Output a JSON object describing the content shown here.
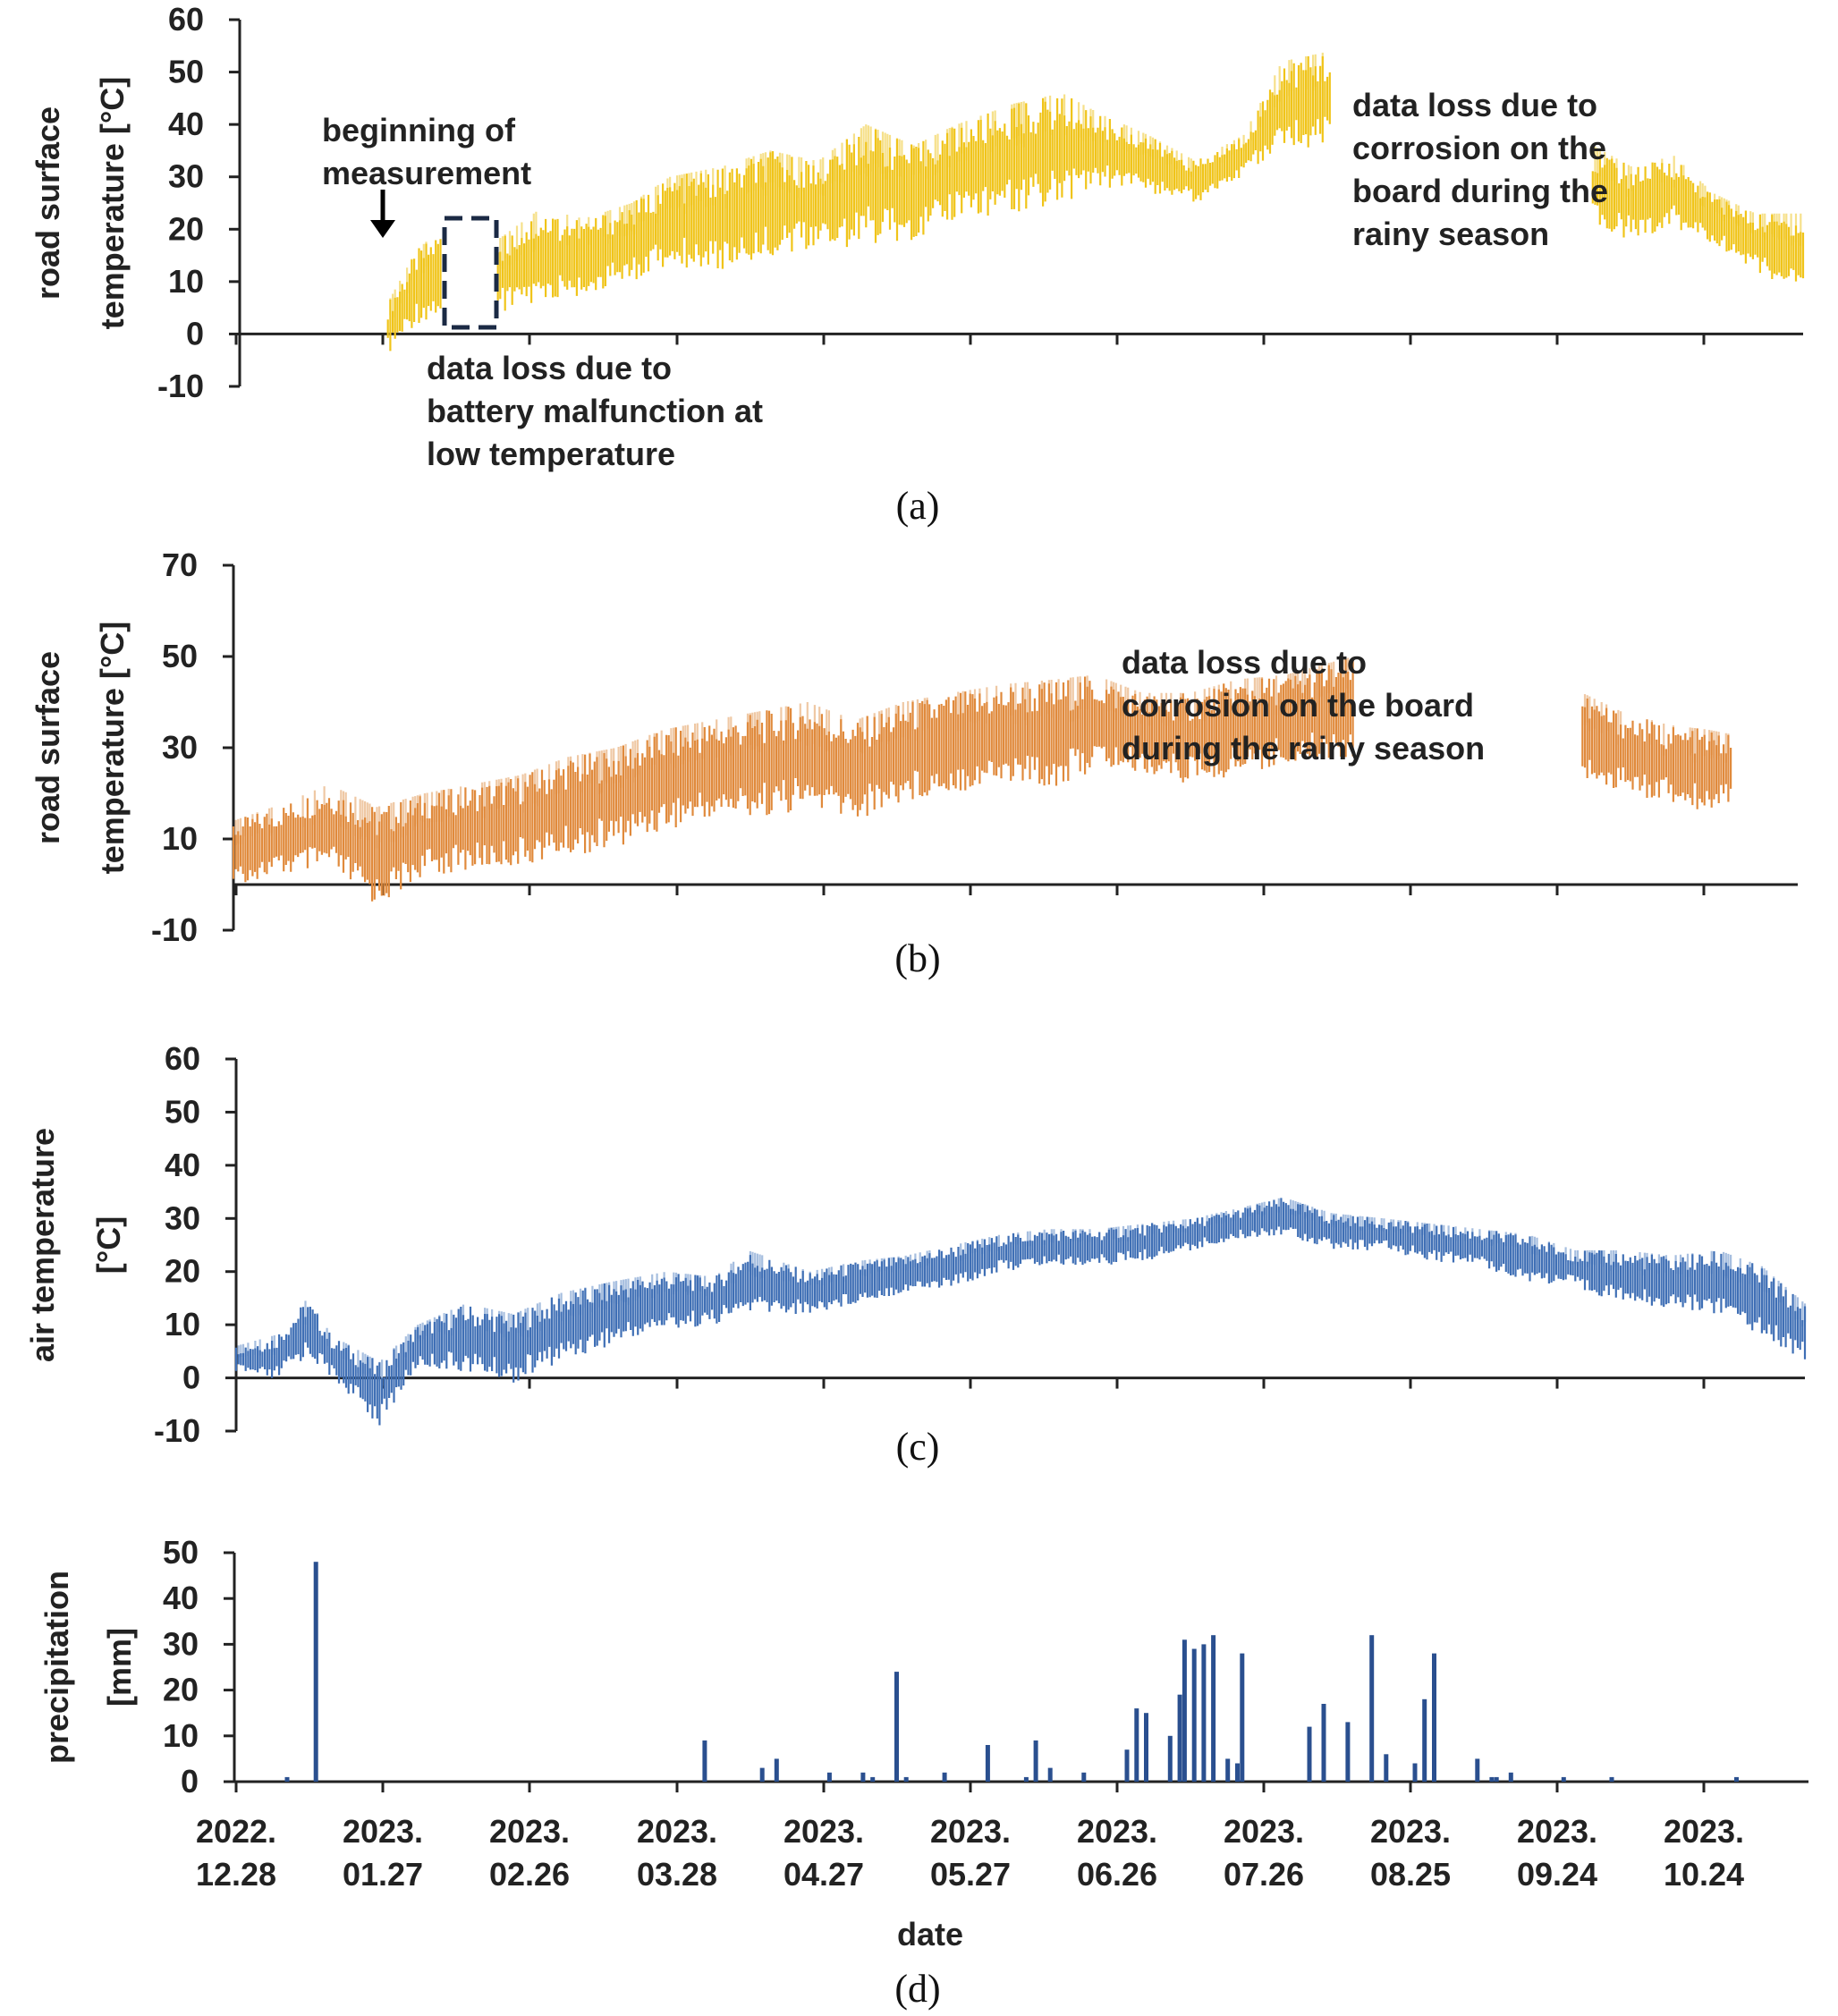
{
  "figure": {
    "x_tick_labels": [
      {
        "year": "2022.",
        "day": "12.28"
      },
      {
        "year": "2023.",
        "day": "01.27"
      },
      {
        "year": "2023.",
        "day": "02.26"
      },
      {
        "year": "2023.",
        "day": "03.28"
      },
      {
        "year": "2023.",
        "day": "04.27"
      },
      {
        "year": "2023.",
        "day": "05.27"
      },
      {
        "year": "2023.",
        "day": "06.26"
      },
      {
        "year": "2023.",
        "day": "07.26"
      },
      {
        "year": "2023.",
        "day": "08.25"
      },
      {
        "year": "2023.",
        "day": "09.24"
      },
      {
        "year": "2023.",
        "day": "10.24"
      }
    ],
    "x_axis_label": "date"
  },
  "chart_data": [
    {
      "type": "line",
      "panel_caption": "(a)",
      "ylabel_lines": [
        "road  surface",
        "temperature  [°C]"
      ],
      "yticks": [
        -10,
        0,
        10,
        20,
        30,
        40,
        50,
        60
      ],
      "ylim": [
        -10,
        60
      ],
      "xlim": [
        "2022-12-28",
        "2023-11-20"
      ],
      "color": "#f0c419",
      "color_light": "#f6e08a",
      "segments": [
        {
          "start": "2023-01-28",
          "end": "2023-02-08",
          "points": [
            [
              "2023-01-28",
              -4,
              6
            ],
            [
              "2023-02-03",
              2,
              16
            ],
            [
              "2023-02-08",
              3,
              20
            ]
          ]
        },
        {
          "start": "2023-02-20",
          "end": "2023-08-13",
          "points": [
            [
              "2023-02-20",
              4,
              18
            ],
            [
              "2023-03-01",
              5,
              24
            ],
            [
              "2023-03-10",
              7,
              22
            ],
            [
              "2023-03-20",
              10,
              25
            ],
            [
              "2023-03-28",
              13,
              30
            ],
            [
              "2023-04-08",
              12,
              32
            ],
            [
              "2023-04-18",
              15,
              35
            ],
            [
              "2023-04-28",
              16,
              33
            ],
            [
              "2023-05-08",
              17,
              40
            ],
            [
              "2023-05-18",
              18,
              36
            ],
            [
              "2023-05-27",
              22,
              40
            ],
            [
              "2023-06-08",
              23,
              44
            ],
            [
              "2023-06-18",
              25,
              46
            ],
            [
              "2023-06-26",
              28,
              42
            ],
            [
              "2023-07-06",
              27,
              38
            ],
            [
              "2023-07-16",
              25,
              33
            ],
            [
              "2023-07-26",
              30,
              38
            ],
            [
              "2023-08-03",
              35,
              52
            ],
            [
              "2023-08-13",
              36,
              54
            ]
          ]
        },
        {
          "start": "2023-10-07",
          "end": "2023-11-20",
          "points": [
            [
              "2023-10-07",
              20,
              36
            ],
            [
              "2023-10-15",
              18,
              32
            ],
            [
              "2023-10-24",
              20,
              34
            ],
            [
              "2023-11-01",
              17,
              27
            ],
            [
              "2023-11-10",
              12,
              23
            ],
            [
              "2023-11-20",
              7,
              23
            ]
          ]
        }
      ],
      "annotations": [
        {
          "lines": [
            "beginning of",
            "measurement"
          ]
        },
        {
          "lines": [
            "data loss due to",
            "battery malfunction at",
            "low temperature"
          ]
        },
        {
          "lines": [
            "data loss due to",
            "corrosion on the",
            "board during the",
            "rainy season"
          ]
        }
      ]
    },
    {
      "type": "line",
      "panel_caption": "(b)",
      "ylabel_lines": [
        "road  surface",
        "temperature  [°C]"
      ],
      "yticks": [
        -10,
        10,
        30,
        50,
        70
      ],
      "ylim": [
        -10,
        70
      ],
      "xlim": [
        "2022-12-28",
        "2023-11-20"
      ],
      "color": "#e08a3c",
      "color_light": "#efc8a4",
      "segments": [
        {
          "start": "2022-12-28",
          "end": "2023-08-19",
          "points": [
            [
              "2022-12-28",
              0,
              14
            ],
            [
              "2023-01-08",
              2,
              18
            ],
            [
              "2023-01-17",
              3,
              22
            ],
            [
              "2023-01-27",
              -5,
              17
            ],
            [
              "2023-02-06",
              2,
              20
            ],
            [
              "2023-02-16",
              3,
              22
            ],
            [
              "2023-02-26",
              4,
              24
            ],
            [
              "2023-03-08",
              6,
              28
            ],
            [
              "2023-03-18",
              8,
              30
            ],
            [
              "2023-03-28",
              12,
              34
            ],
            [
              "2023-04-07",
              14,
              36
            ],
            [
              "2023-04-17",
              15,
              38
            ],
            [
              "2023-04-27",
              16,
              40
            ],
            [
              "2023-05-07",
              14,
              36
            ],
            [
              "2023-05-17",
              18,
              40
            ],
            [
              "2023-05-27",
              20,
              42
            ],
            [
              "2023-06-08",
              22,
              44
            ],
            [
              "2023-06-18",
              21,
              45
            ],
            [
              "2023-06-26",
              25,
              46
            ],
            [
              "2023-07-06",
              24,
              42
            ],
            [
              "2023-07-16",
              22,
              42
            ],
            [
              "2023-07-26",
              24,
              45
            ],
            [
              "2023-08-05",
              26,
              46
            ],
            [
              "2023-08-19",
              28,
              50
            ]
          ]
        },
        {
          "start": "2023-10-06",
          "end": "2023-11-06",
          "points": [
            [
              "2023-10-06",
              23,
              42
            ],
            [
              "2023-10-14",
              20,
              38
            ],
            [
              "2023-10-24",
              18,
              35
            ],
            [
              "2023-11-01",
              16,
              34
            ],
            [
              "2023-11-06",
              18,
              33
            ]
          ]
        }
      ],
      "annotations": [
        {
          "lines": [
            "data loss due to",
            "corrosion on the board",
            "during the rainy season"
          ]
        }
      ]
    },
    {
      "type": "line",
      "panel_caption": "(c)",
      "ylabel_lines": [
        "air temperature",
        "[°C]"
      ],
      "yticks": [
        -10,
        0,
        10,
        20,
        30,
        40,
        50,
        60
      ],
      "ylim": [
        -10,
        60
      ],
      "xlim": [
        "2022-12-28",
        "2023-11-21"
      ],
      "color": "#3f6fb5",
      "color_light": "#a6bedf",
      "segments": [
        {
          "start": "2022-12-28",
          "end": "2023-11-21",
          "points": [
            [
              "2022-12-28",
              1,
              6
            ],
            [
              "2023-01-05",
              -1,
              8
            ],
            [
              "2023-01-12",
              4,
              15
            ],
            [
              "2023-01-17",
              0,
              8
            ],
            [
              "2023-01-27",
              -9,
              3
            ],
            [
              "2023-02-04",
              2,
              10
            ],
            [
              "2023-02-14",
              1,
              14
            ],
            [
              "2023-02-24",
              -1,
              12
            ],
            [
              "2023-03-06",
              3,
              16
            ],
            [
              "2023-03-16",
              6,
              18
            ],
            [
              "2023-03-28",
              9,
              20
            ],
            [
              "2023-04-07",
              10,
              19
            ],
            [
              "2023-04-14",
              12,
              24
            ],
            [
              "2023-04-27",
              12,
              20
            ],
            [
              "2023-05-07",
              14,
              22
            ],
            [
              "2023-05-17",
              16,
              23
            ],
            [
              "2023-05-27",
              17,
              25
            ],
            [
              "2023-06-06",
              20,
              27
            ],
            [
              "2023-06-16",
              21,
              28
            ],
            [
              "2023-06-26",
              21,
              28
            ],
            [
              "2023-07-06",
              22,
              29
            ],
            [
              "2023-07-16",
              24,
              30
            ],
            [
              "2023-07-26",
              26,
              32
            ],
            [
              "2023-08-04",
              27,
              34
            ],
            [
              "2023-08-14",
              24,
              31
            ],
            [
              "2023-08-25",
              24,
              30
            ],
            [
              "2023-09-04",
              22,
              29
            ],
            [
              "2023-09-14",
              21,
              28
            ],
            [
              "2023-09-24",
              18,
              27
            ],
            [
              "2023-10-04",
              17,
              24
            ],
            [
              "2023-10-14",
              14,
              24
            ],
            [
              "2023-10-24",
              13,
              23
            ],
            [
              "2023-11-03",
              12,
              24
            ],
            [
              "2023-11-12",
              8,
              21
            ],
            [
              "2023-11-21",
              3,
              14
            ]
          ]
        }
      ]
    },
    {
      "type": "bar",
      "panel_caption": "(d)",
      "ylabel_lines": [
        "precipitation",
        "[mm]"
      ],
      "yticks": [
        0,
        10,
        20,
        30,
        40,
        50
      ],
      "ylim": [
        0,
        50
      ],
      "xlim": [
        "2022-12-28",
        "2023-11-21"
      ],
      "color": "#2a4f8f",
      "x": [
        "2023-01-08",
        "2023-01-14",
        "2023-04-05",
        "2023-04-17",
        "2023-04-20",
        "2023-05-01",
        "2023-05-08",
        "2023-05-10",
        "2023-05-15",
        "2023-05-17",
        "2023-05-25",
        "2023-06-03",
        "2023-06-11",
        "2023-06-13",
        "2023-06-16",
        "2023-06-23",
        "2023-07-02",
        "2023-07-04",
        "2023-07-06",
        "2023-07-11",
        "2023-07-13",
        "2023-07-14",
        "2023-07-16",
        "2023-07-18",
        "2023-07-20",
        "2023-07-23",
        "2023-07-25",
        "2023-07-26",
        "2023-08-09",
        "2023-08-12",
        "2023-08-17",
        "2023-08-22",
        "2023-08-25",
        "2023-08-31",
        "2023-09-02",
        "2023-09-04",
        "2023-09-13",
        "2023-09-16",
        "2023-09-17",
        "2023-09-20",
        "2023-10-01",
        "2023-10-11",
        "2023-11-06"
      ],
      "values": [
        1,
        48,
        9,
        3,
        5,
        2,
        2,
        1,
        24,
        1,
        2,
        8,
        1,
        9,
        3,
        2,
        7,
        16,
        15,
        10,
        19,
        31,
        29,
        30,
        32,
        5,
        4,
        28,
        12,
        17,
        13,
        32,
        6,
        4,
        18,
        28,
        5,
        1,
        1,
        2,
        1,
        1,
        1
      ]
    }
  ]
}
